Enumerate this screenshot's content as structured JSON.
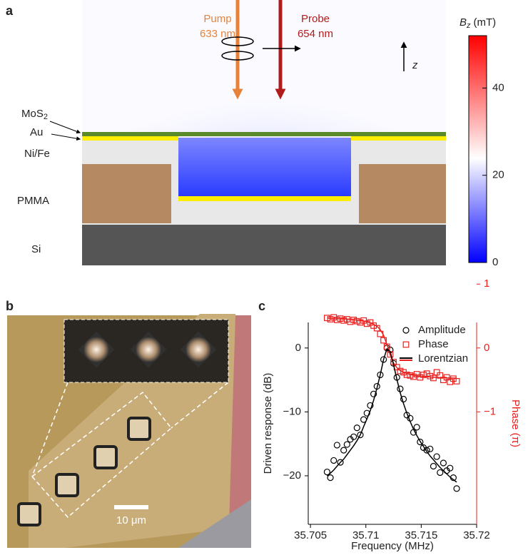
{
  "panel_a": {
    "label": "a",
    "pump": {
      "name": "Pump",
      "wavelength": "633 nm"
    },
    "probe": {
      "name": "Probe",
      "wavelength": "654 nm"
    },
    "axis_label": "z",
    "layers": {
      "mos2": {
        "text": "MoS",
        "subscript": "2"
      },
      "au": "Au",
      "nife": "Ni/Fe",
      "pmma": "PMMA",
      "si": "Si"
    },
    "colorbar": {
      "symbol": "B",
      "subscript": "z",
      "unit": "(mT)",
      "lim": [
        0,
        52
      ],
      "ticks": [
        0,
        20,
        40
      ]
    }
  },
  "panel_b": {
    "label": "b",
    "scale_bar": "10 μm"
  },
  "panel_c_label": "c",
  "chart_data": {
    "type": "scatter",
    "xlabel": "Frequency (MHz)",
    "ylabel": "Driven response (dB)",
    "y2label": "Phase (π)",
    "x": [
      35.7065,
      35.7068,
      35.7071,
      35.7074,
      35.7077,
      35.708,
      35.7083,
      35.7086,
      35.7089,
      35.7092,
      35.7095,
      35.7098,
      35.7101,
      35.7104,
      35.7107,
      35.711,
      35.7113,
      35.7116,
      35.7119,
      35.7122,
      35.7125,
      35.7128,
      35.7131,
      35.7134,
      35.7137,
      35.714,
      35.7143,
      35.7146,
      35.7149,
      35.7152,
      35.7155,
      35.7158,
      35.7161,
      35.7164,
      35.7167,
      35.717,
      35.7173,
      35.7176,
      35.7179,
      35.7182
    ],
    "series": [
      {
        "name": "Amplitude",
        "color": "#000000",
        "marker": "circle",
        "axis": "y",
        "values": [
          -19.4,
          -20.3,
          -17.6,
          -15.2,
          -17.9,
          -16.0,
          -15.1,
          -14.3,
          -13.9,
          -12.5,
          -13.6,
          -11.2,
          -10.2,
          -9.0,
          -7.2,
          -6.0,
          -4.2,
          -1.8,
          0.0,
          -0.3,
          -2.4,
          -4.6,
          -6.4,
          -8.0,
          -10.5,
          -11.0,
          -13.2,
          -12.4,
          -14.7,
          -15.6,
          -16.0,
          -15.8,
          -18.5,
          -17.0,
          -19.5,
          -18.0,
          -19.2,
          -18.8,
          -20.3,
          -22.0
        ]
      },
      {
        "name": "Phase",
        "color": "#e8201e",
        "marker": "square",
        "axis": "y2",
        "values": [
          0.47,
          0.45,
          0.48,
          0.44,
          0.46,
          0.43,
          0.45,
          0.41,
          0.44,
          0.42,
          0.4,
          0.43,
          0.38,
          0.4,
          0.35,
          0.31,
          0.22,
          0.12,
          0.02,
          -0.1,
          -0.22,
          -0.3,
          -0.36,
          -0.38,
          -0.42,
          -0.43,
          -0.45,
          -0.41,
          -0.46,
          -0.42,
          -0.4,
          -0.44,
          -0.47,
          -0.38,
          -0.43,
          -0.5,
          -0.46,
          -0.53,
          -0.48,
          -0.52
        ]
      },
      {
        "name": "Lorentzian",
        "color": "#e8201e",
        "marker": "line",
        "axis": "y2",
        "values": [
          0.468,
          0.466,
          0.464,
          0.462,
          0.459,
          0.456,
          0.453,
          0.449,
          0.444,
          0.438,
          0.431,
          0.422,
          0.411,
          0.395,
          0.372,
          0.34,
          0.288,
          0.2,
          0.057,
          -0.111,
          -0.235,
          -0.308,
          -0.352,
          -0.381,
          -0.4,
          -0.414,
          -0.425,
          -0.434,
          -0.44,
          -0.446,
          -0.45,
          -0.454,
          -0.457,
          -0.46,
          -0.463,
          -0.465,
          -0.467,
          -0.469,
          -0.47,
          -0.472
        ]
      },
      {
        "name": "Lorentzian",
        "color": "#000000",
        "marker": "line",
        "axis": "y",
        "values": [
          -20.0,
          -19.6,
          -19.1,
          -18.5,
          -17.9,
          -17.4,
          -16.7,
          -16.0,
          -15.3,
          -14.5,
          -13.6,
          -12.3,
          -11.1,
          -9.8,
          -8.2,
          -6.3,
          -4.2,
          -1.8,
          -0.14,
          -0.54,
          -2.6,
          -4.9,
          -7.0,
          -8.7,
          -10.2,
          -11.5,
          -12.7,
          -13.7,
          -14.6,
          -15.4,
          -16.2,
          -16.9,
          -17.5,
          -18.1,
          -18.7,
          -19.2,
          -19.7,
          -20.2,
          -20.6,
          -21.0
        ]
      }
    ],
    "xlim": [
      35.7048,
      35.72
    ],
    "xticks": [
      35.705,
      35.71,
      35.715,
      35.72
    ],
    "ylim": [
      -27.6,
      4
    ],
    "yticks": [
      0,
      {
        "value": -10,
        "label": "−10"
      },
      {
        "value": -20,
        "label": "−20"
      }
    ],
    "y2lim": [
      -2.76,
      0.4
    ],
    "y2ticks": [
      1,
      0,
      {
        "value": -1,
        "label": "−1"
      }
    ],
    "y2color": "#e8201e",
    "legend": "upper right"
  }
}
